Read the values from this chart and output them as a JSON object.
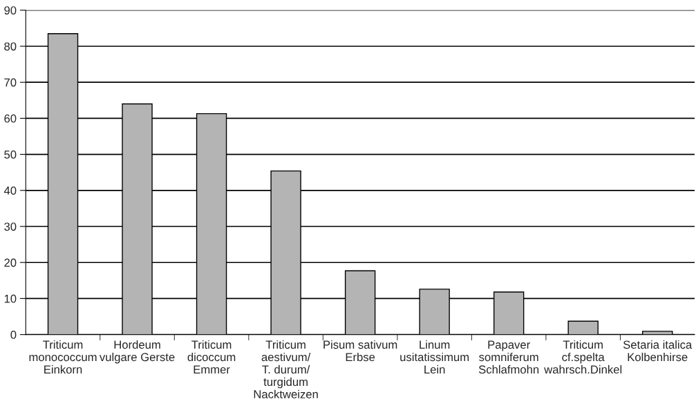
{
  "chart_data": {
    "type": "bar",
    "categories": [
      "Triticum\nmonococcum\nEinkorn",
      "Hordeum\nvulgare Gerste",
      "Triticum\ndicoccum\nEmmer",
      "Triticum\naestivum/\nT. durum/\nturgidum\nNacktweizen",
      "Pisum sativum\nErbse",
      "Linum\nusitatissimum\nLein",
      "Papaver\nsomniferum\nSchlafmohn",
      "Triticum\ncf.spelta\nwahrsch.Dinkel",
      "Setaria italica\nKolbenhirse"
    ],
    "values": [
      83.5,
      64.0,
      61.3,
      45.4,
      17.7,
      12.6,
      11.8,
      3.7,
      0.9
    ],
    "color": "#b4b4b4",
    "ylim": [
      0,
      90
    ],
    "yticks": [
      0,
      10,
      20,
      30,
      40,
      50,
      60,
      70,
      80,
      90
    ],
    "grid": "y"
  }
}
